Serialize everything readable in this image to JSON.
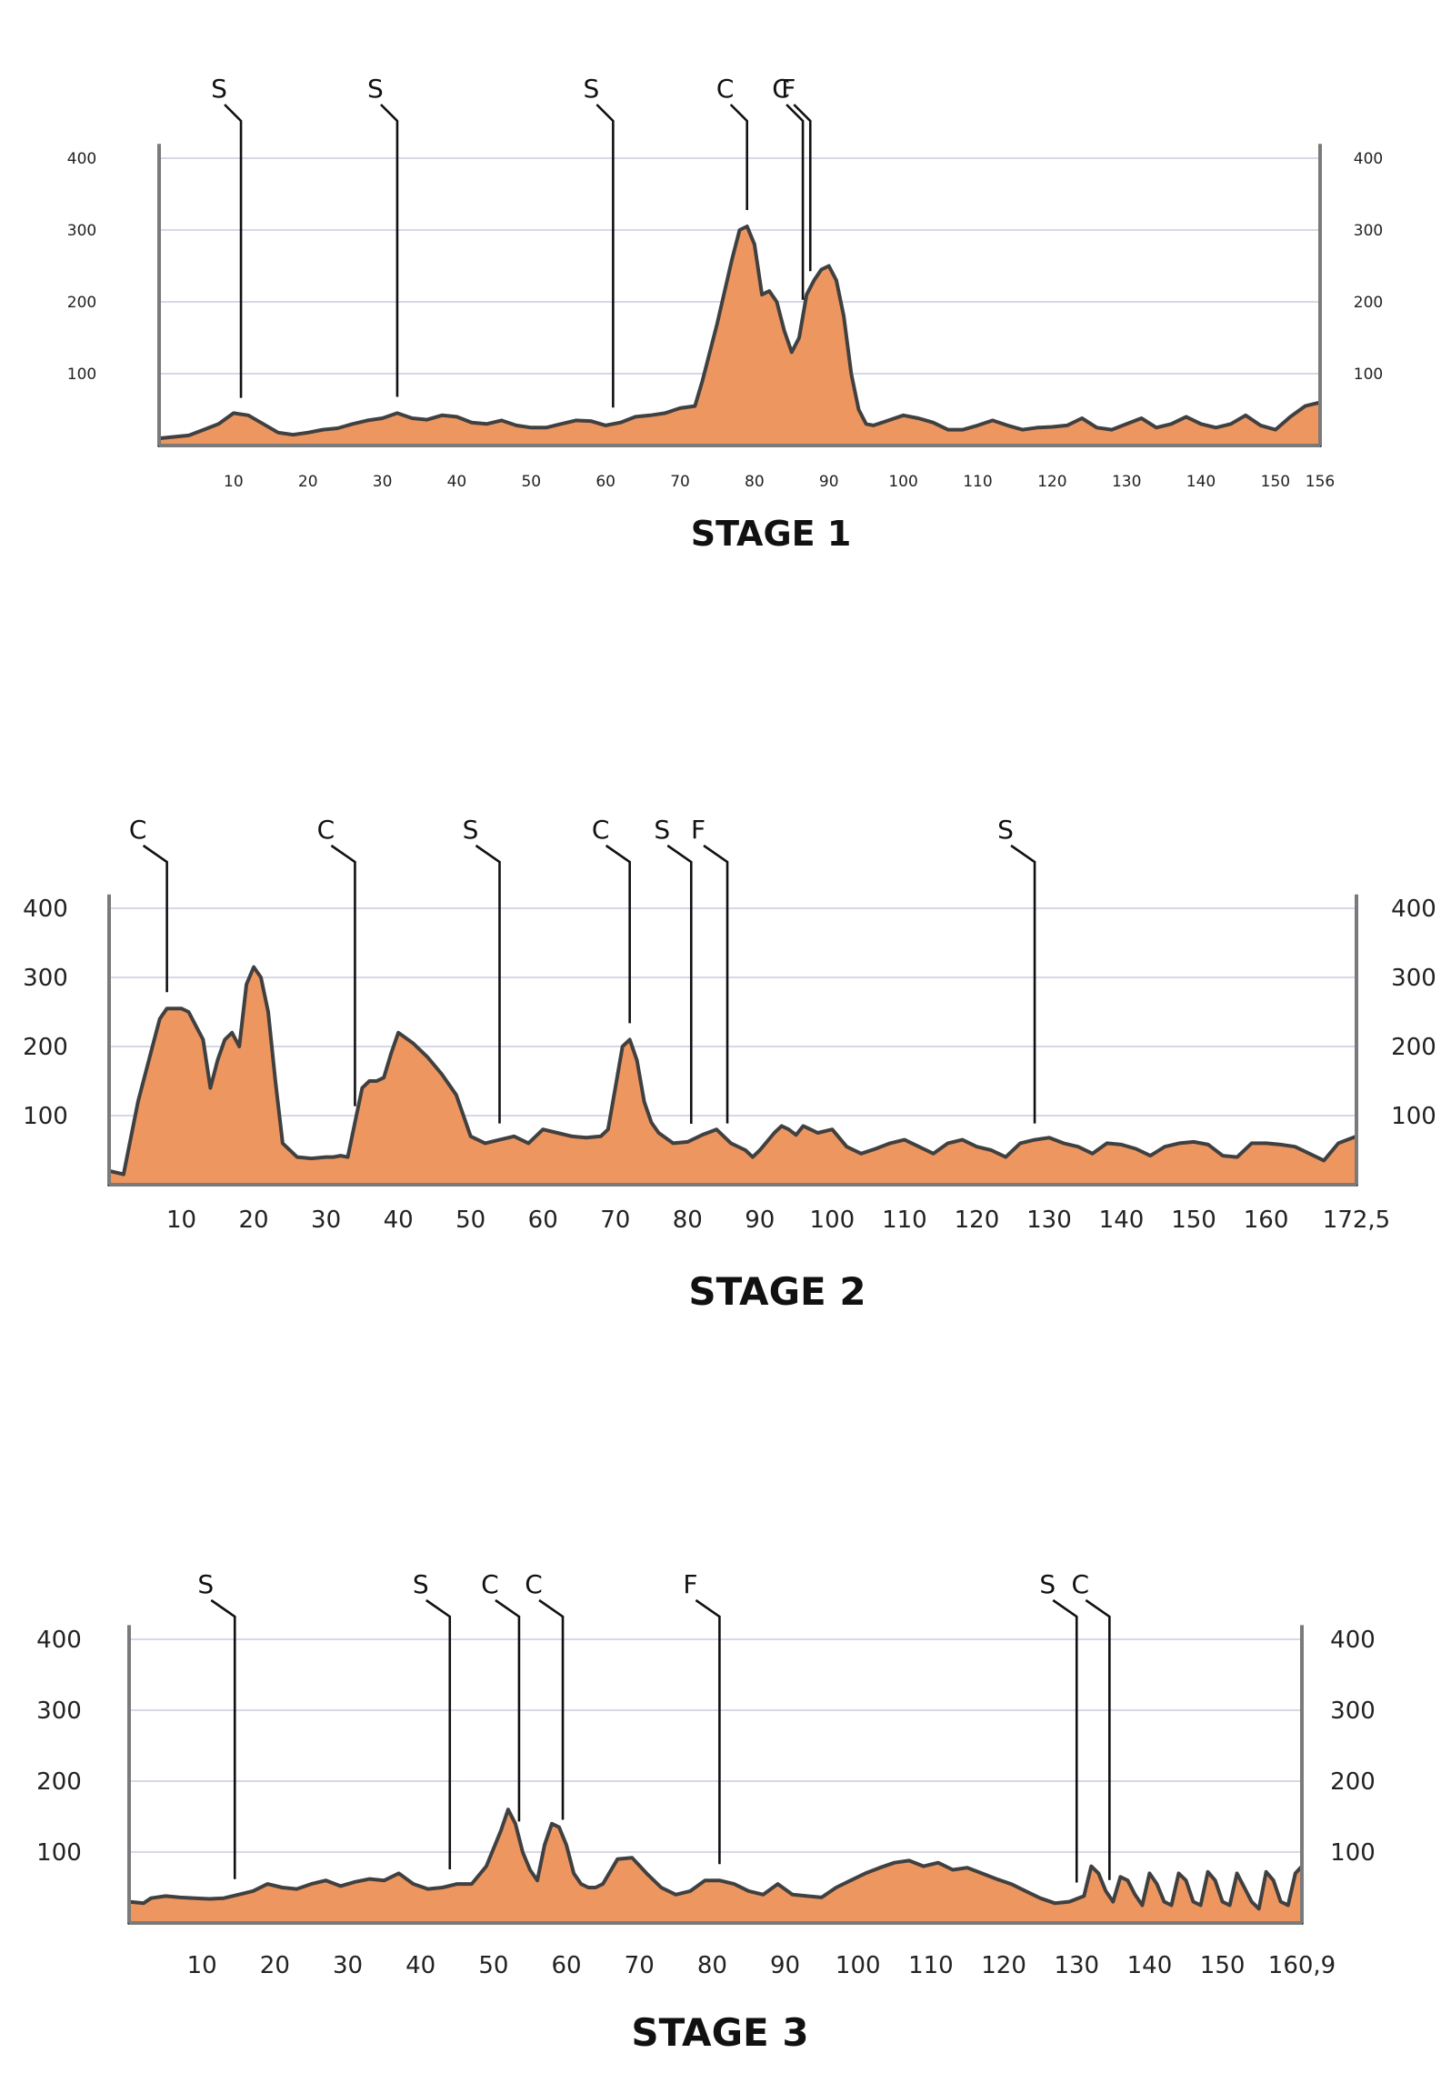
{
  "chart_data": [
    {
      "type": "area",
      "title": "STAGE 1",
      "x_ticks": [
        "10",
        "20",
        "30",
        "40",
        "50",
        "60",
        "70",
        "80",
        "90",
        "100",
        "110",
        "120",
        "130",
        "140",
        "150",
        "156"
      ],
      "y_ticks": [
        "400",
        "300",
        "200",
        "100"
      ],
      "xlim": [
        0,
        156
      ],
      "ylim": [
        0,
        420
      ],
      "x": [
        0,
        2,
        4,
        6,
        8,
        10,
        12,
        14,
        16,
        18,
        20,
        22,
        24,
        26,
        28,
        30,
        32,
        34,
        36,
        38,
        40,
        42,
        44,
        46,
        48,
        50,
        52,
        54,
        56,
        58,
        60,
        62,
        64,
        66,
        68,
        70,
        72,
        73,
        75,
        77,
        78,
        79,
        80,
        81,
        82,
        83,
        84,
        85,
        86,
        87,
        88,
        89,
        90,
        91,
        92,
        93,
        94,
        95,
        96,
        98,
        100,
        102,
        104,
        106,
        108,
        110,
        112,
        114,
        116,
        118,
        120,
        122,
        124,
        126,
        128,
        130,
        132,
        134,
        136,
        138,
        140,
        142,
        144,
        146,
        148,
        150,
        152,
        154,
        156
      ],
      "y": [
        10,
        12,
        14,
        22,
        30,
        45,
        42,
        30,
        18,
        15,
        18,
        22,
        24,
        30,
        35,
        38,
        45,
        38,
        36,
        42,
        40,
        32,
        30,
        35,
        28,
        25,
        25,
        30,
        35,
        34,
        28,
        32,
        40,
        42,
        45,
        52,
        55,
        90,
        170,
        260,
        300,
        305,
        280,
        210,
        215,
        200,
        160,
        130,
        150,
        210,
        230,
        245,
        250,
        230,
        180,
        100,
        50,
        30,
        28,
        35,
        42,
        38,
        32,
        22,
        22,
        28,
        35,
        28,
        22,
        25,
        26,
        28,
        38,
        25,
        22,
        30,
        38,
        25,
        30,
        40,
        30,
        25,
        30,
        42,
        28,
        22,
        40,
        55,
        60
      ],
      "markers": [
        {
          "label": "S",
          "x": 11
        },
        {
          "label": "S",
          "x": 32
        },
        {
          "label": "S",
          "x": 61
        },
        {
          "label": "C",
          "x": 79
        },
        {
          "label": "C",
          "x": 86.5
        },
        {
          "label": "F",
          "x": 87.5
        }
      ]
    },
    {
      "type": "area",
      "title": "STAGE 2",
      "x_ticks": [
        "10",
        "20",
        "30",
        "40",
        "50",
        "60",
        "70",
        "80",
        "90",
        "100",
        "110",
        "120",
        "130",
        "140",
        "150",
        "160",
        "172,5"
      ],
      "y_ticks": [
        "400",
        "300",
        "200",
        "100"
      ],
      "xlim": [
        0,
        172.5
      ],
      "ylim": [
        0,
        420
      ],
      "x": [
        0,
        2,
        4,
        6,
        7,
        8,
        9,
        10,
        11,
        12,
        13,
        14,
        15,
        16,
        17,
        18,
        19,
        20,
        21,
        22,
        23,
        24,
        26,
        28,
        30,
        31,
        32,
        33,
        34,
        35,
        36,
        37,
        38,
        39,
        40,
        42,
        44,
        46,
        48,
        50,
        52,
        54,
        56,
        58,
        60,
        62,
        64,
        66,
        68,
        69,
        70,
        71,
        72,
        73,
        74,
        75,
        76,
        78,
        80,
        82,
        84,
        86,
        88,
        89,
        90,
        92,
        93,
        94,
        95,
        96,
        98,
        100,
        102,
        104,
        106,
        108,
        110,
        112,
        114,
        116,
        118,
        120,
        122,
        124,
        126,
        128,
        130,
        132,
        134,
        136,
        138,
        140,
        142,
        144,
        146,
        148,
        150,
        152,
        154,
        156,
        158,
        160,
        162,
        164,
        166,
        168,
        170,
        172.5
      ],
      "y": [
        20,
        15,
        120,
        200,
        240,
        255,
        255,
        255,
        250,
        230,
        210,
        140,
        180,
        210,
        220,
        200,
        290,
        315,
        300,
        250,
        150,
        60,
        40,
        38,
        40,
        40,
        42,
        40,
        90,
        140,
        150,
        150,
        155,
        190,
        220,
        205,
        185,
        160,
        130,
        70,
        60,
        65,
        70,
        60,
        80,
        75,
        70,
        68,
        70,
        80,
        140,
        200,
        210,
        180,
        120,
        90,
        75,
        60,
        62,
        72,
        80,
        60,
        50,
        40,
        50,
        75,
        85,
        80,
        72,
        85,
        75,
        80,
        55,
        45,
        52,
        60,
        65,
        55,
        45,
        60,
        65,
        55,
        50,
        40,
        60,
        65,
        68,
        60,
        55,
        45,
        60,
        58,
        52,
        42,
        55,
        60,
        62,
        58,
        42,
        40,
        60,
        60,
        58,
        55,
        45,
        35,
        60,
        70
      ],
      "markers": [
        {
          "label": "C",
          "x": 8
        },
        {
          "label": "C",
          "x": 34
        },
        {
          "label": "S",
          "x": 54
        },
        {
          "label": "C",
          "x": 72
        },
        {
          "label": "S",
          "x": 80.5
        },
        {
          "label": "F",
          "x": 85.5
        },
        {
          "label": "S",
          "x": 128
        }
      ]
    },
    {
      "type": "area",
      "title": "STAGE 3",
      "x_ticks": [
        "10",
        "20",
        "30",
        "40",
        "50",
        "60",
        "70",
        "80",
        "90",
        "100",
        "110",
        "120",
        "130",
        "140",
        "150",
        "160,9"
      ],
      "y_ticks": [
        "400",
        "300",
        "200",
        "100"
      ],
      "xlim": [
        0,
        160.9
      ],
      "ylim": [
        0,
        420
      ],
      "x": [
        0,
        2,
        3,
        5,
        7,
        9,
        11,
        13,
        15,
        17,
        19,
        21,
        23,
        25,
        27,
        29,
        31,
        33,
        35,
        37,
        39,
        41,
        43,
        45,
        47,
        49,
        51,
        52,
        53,
        54,
        55,
        56,
        57,
        58,
        59,
        60,
        61,
        62,
        63,
        64,
        65,
        67,
        69,
        71,
        73,
        75,
        77,
        79,
        81,
        83,
        85,
        87,
        89,
        91,
        93,
        95,
        97,
        99,
        101,
        103,
        105,
        107,
        109,
        111,
        113,
        115,
        117,
        119,
        121,
        123,
        125,
        127,
        129,
        131,
        132,
        133,
        134,
        135,
        136,
        137,
        138,
        139,
        140,
        141,
        142,
        143,
        144,
        145,
        146,
        147,
        148,
        149,
        150,
        151,
        152,
        153,
        154,
        155,
        156,
        157,
        158,
        159,
        160,
        160.9
      ],
      "y": [
        30,
        28,
        35,
        38,
        36,
        35,
        34,
        35,
        40,
        45,
        55,
        50,
        48,
        55,
        60,
        52,
        58,
        62,
        60,
        70,
        55,
        48,
        50,
        55,
        55,
        80,
        130,
        160,
        140,
        100,
        75,
        60,
        110,
        140,
        135,
        110,
        70,
        55,
        50,
        50,
        55,
        90,
        92,
        70,
        50,
        40,
        45,
        60,
        60,
        55,
        45,
        40,
        55,
        40,
        38,
        36,
        50,
        60,
        70,
        78,
        85,
        88,
        80,
        85,
        75,
        78,
        70,
        62,
        55,
        45,
        35,
        28,
        30,
        38,
        80,
        70,
        45,
        30,
        65,
        60,
        40,
        25,
        70,
        55,
        30,
        25,
        70,
        60,
        30,
        25,
        72,
        60,
        30,
        25,
        70,
        50,
        30,
        20,
        72,
        60,
        30,
        25,
        70,
        80
      ],
      "markers": [
        {
          "label": "S",
          "x": 14.5
        },
        {
          "label": "S",
          "x": 44
        },
        {
          "label": "C",
          "x": 53.5
        },
        {
          "label": "C",
          "x": 59.5
        },
        {
          "label": "F",
          "x": 81
        },
        {
          "label": "S",
          "x": 130
        },
        {
          "label": "C",
          "x": 134.5
        }
      ]
    }
  ]
}
